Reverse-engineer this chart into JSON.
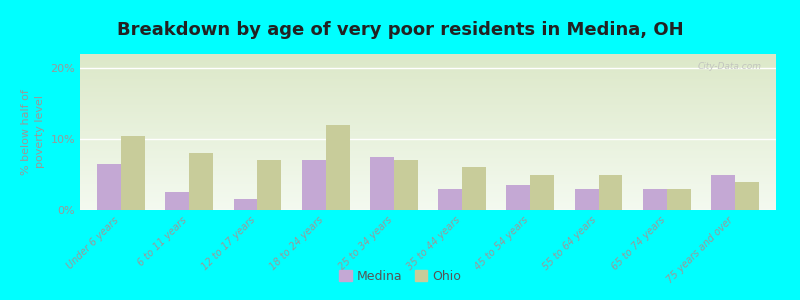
{
  "title": "Breakdown by age of very poor residents in Medina, OH",
  "ylabel": "% below half of\npoverty level",
  "categories": [
    "Under 6 years",
    "6 to 11 years",
    "12 to 17 years",
    "18 to 24 years",
    "25 to 34 years",
    "35 to 44 years",
    "45 to 54 years",
    "55 to 64 years",
    "65 to 74 years",
    "75 years and over"
  ],
  "medina_values": [
    6.5,
    2.5,
    1.5,
    7.0,
    7.5,
    3.0,
    3.5,
    3.0,
    3.0,
    5.0
  ],
  "ohio_values": [
    10.5,
    8.0,
    7.0,
    12.0,
    7.0,
    6.0,
    5.0,
    5.0,
    3.0,
    4.0
  ],
  "medina_color": "#c4a8d4",
  "ohio_color": "#c8cc9a",
  "background_color": "#00ffff",
  "plot_bg_top": "#dce8c8",
  "plot_bg_bottom": "#f4faf0",
  "title_fontsize": 13,
  "ylabel_fontsize": 8,
  "tick_fontsize": 7,
  "ylim": [
    0,
    22
  ],
  "yticks": [
    0,
    10,
    20
  ],
  "ytick_labels": [
    "0%",
    "10%",
    "20%"
  ],
  "bar_width": 0.35,
  "legend_medina": "Medina",
  "legend_ohio": "Ohio",
  "watermark": "City-Data.com"
}
